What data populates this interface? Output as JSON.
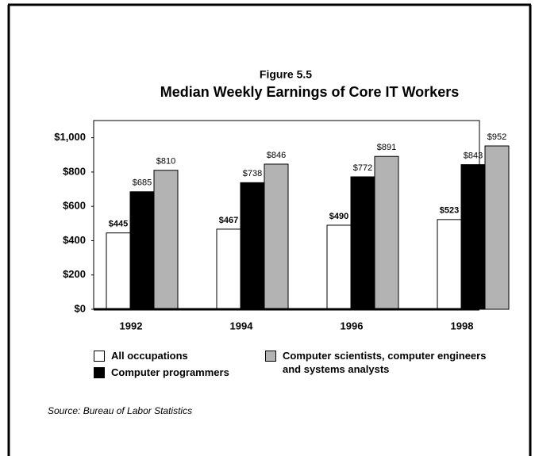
{
  "chart_data": {
    "type": "bar",
    "subtitle": "Figure 5.5",
    "title": "Median Weekly Earnings of Core IT Workers",
    "categories": [
      "1992",
      "1994",
      "1996",
      "1998"
    ],
    "series": [
      {
        "name": "All occupations",
        "color": "#ffffff",
        "values": [
          445,
          467,
          490,
          523
        ],
        "value_labels": [
          "$445",
          "$467",
          "$490",
          "$523"
        ]
      },
      {
        "name": "Computer programmers",
        "color": "#000000",
        "values": [
          685,
          738,
          772,
          843
        ],
        "value_labels": [
          "$685",
          "$738",
          "$772",
          "$843"
        ]
      },
      {
        "name": "Computer scientists, computer engineers and systems analysts",
        "color": "#b3b3b3",
        "values": [
          810,
          846,
          891,
          952
        ],
        "value_labels": [
          "$810",
          "$846",
          "$891",
          "$952"
        ]
      }
    ],
    "ylim": [
      0,
      1100
    ],
    "yticks": [
      {
        "value": 0,
        "label": "$0"
      },
      {
        "value": 200,
        "label": "$200"
      },
      {
        "value": 400,
        "label": "$400"
      },
      {
        "value": 600,
        "label": "$600"
      },
      {
        "value": 800,
        "label": "$800"
      },
      {
        "value": 1000,
        "label": "$1,000"
      }
    ],
    "source": "Source:  Bureau of Labor Statistics"
  }
}
